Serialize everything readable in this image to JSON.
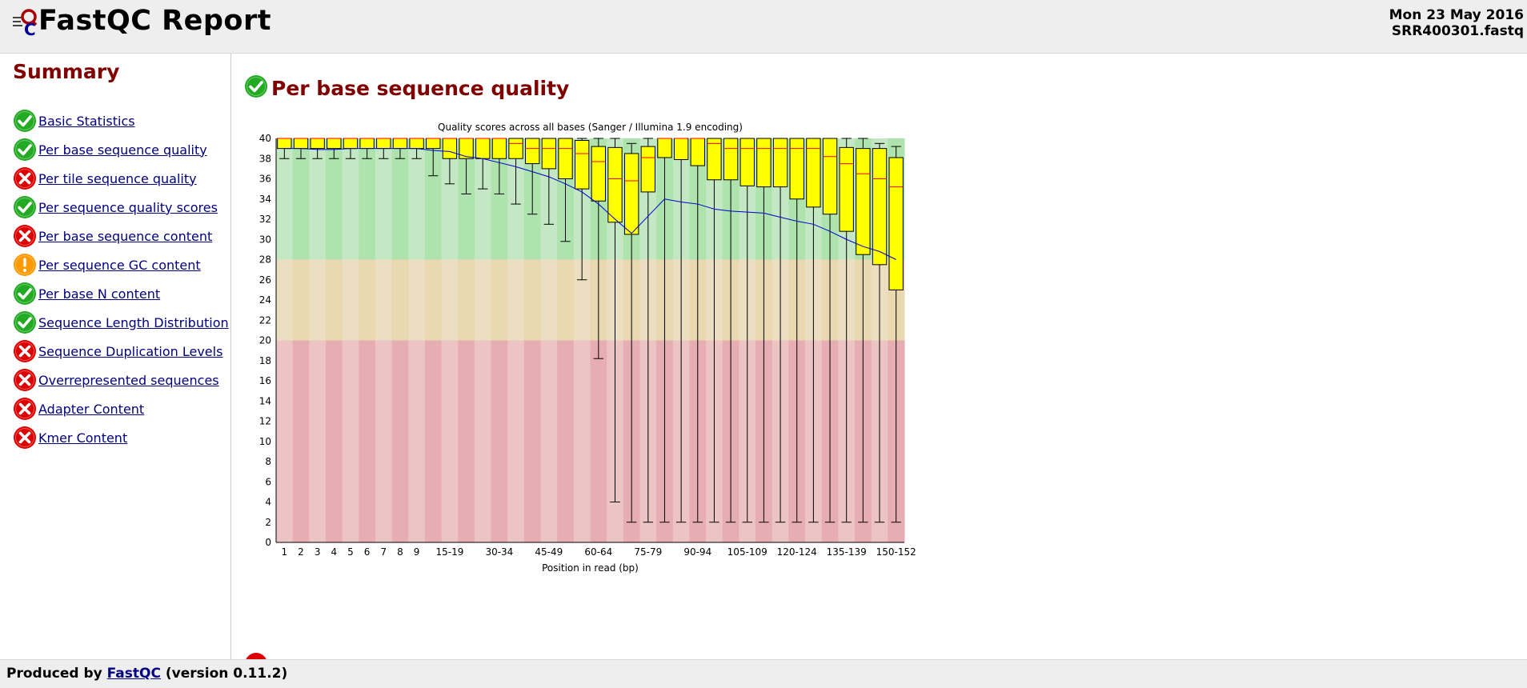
{
  "header": {
    "title": "FastQC Report",
    "date": "Mon 23 May 2016",
    "filename": "SRR400301.fastq"
  },
  "sidebar": {
    "title": "Summary",
    "items": [
      {
        "label": "Basic Statistics",
        "status": "pass"
      },
      {
        "label": "Per base sequence quality",
        "status": "pass"
      },
      {
        "label": "Per tile sequence quality",
        "status": "fail"
      },
      {
        "label": "Per sequence quality scores",
        "status": "pass"
      },
      {
        "label": "Per base sequence content",
        "status": "fail"
      },
      {
        "label": "Per sequence GC content",
        "status": "warn"
      },
      {
        "label": "Per base N content",
        "status": "pass"
      },
      {
        "label": "Sequence Length Distribution",
        "status": "pass"
      },
      {
        "label": "Sequence Duplication Levels",
        "status": "fail"
      },
      {
        "label": "Overrepresented sequences",
        "status": "fail"
      },
      {
        "label": "Adapter Content",
        "status": "fail"
      },
      {
        "label": "Kmer Content",
        "status": "fail"
      }
    ]
  },
  "main": {
    "module_title": "Per base sequence quality",
    "module_status": "pass"
  },
  "footer": {
    "prefix": "Produced by",
    "link": "FastQC",
    "suffix": "(version 0.11.2)"
  },
  "colors": {
    "pass": "#22aa22",
    "warn": "#ff9900",
    "fail": "#dd0000",
    "heading": "#800000",
    "box": "#ffff00",
    "median": "#ff0000",
    "mean_line": "#0000cc",
    "zone_good": "#c4e8c4",
    "zone_good_alt": "#aee3ae",
    "zone_mid": "#ecdfc1",
    "zone_mid_alt": "#e9d8b0",
    "zone_bad": "#ecc4c4",
    "zone_bad_alt": "#e6adb2"
  },
  "chart_data": {
    "type": "box",
    "title": "Quality scores across all bases (Sanger / Illumina 1.9 encoding)",
    "xlabel": "Position in read (bp)",
    "ylabel": "",
    "ylim": [
      0,
      40
    ],
    "y_ticks": [
      0,
      2,
      4,
      6,
      8,
      10,
      12,
      14,
      16,
      18,
      20,
      22,
      24,
      26,
      28,
      30,
      32,
      34,
      36,
      38,
      40
    ],
    "x_tick_labels": [
      "1",
      "2",
      "3",
      "4",
      "5",
      "6",
      "7",
      "8",
      "9",
      "15-19",
      "30-34",
      "45-49",
      "60-64",
      "75-79",
      "90-94",
      "105-109",
      "120-124",
      "135-139",
      "150-152"
    ],
    "zones": [
      {
        "name": "good",
        "from": 28,
        "to": 40
      },
      {
        "name": "acceptable",
        "from": 20,
        "to": 28
      },
      {
        "name": "poor",
        "from": 0,
        "to": 20
      }
    ],
    "categories": [
      "1",
      "2",
      "3",
      "4",
      "5",
      "6",
      "7",
      "8",
      "9",
      "10-14",
      "15-19",
      "20-24",
      "25-29",
      "30-34",
      "35-39",
      "40-44",
      "45-49",
      "50-54",
      "55-59",
      "60-64",
      "65-69",
      "70-74",
      "75-79",
      "80-84",
      "85-89",
      "90-94",
      "95-99",
      "100-104",
      "105-109",
      "110-114",
      "115-119",
      "120-124",
      "125-129",
      "130-134",
      "135-139",
      "140-144",
      "145-149",
      "150-152"
    ],
    "boxes": [
      {
        "q1": 39,
        "median": 40,
        "q3": 40,
        "low": 38,
        "high": 40,
        "mean": 39.0
      },
      {
        "q1": 39,
        "median": 40,
        "q3": 40,
        "low": 38,
        "high": 40,
        "mean": 39.0
      },
      {
        "q1": 39,
        "median": 40,
        "q3": 40,
        "low": 38,
        "high": 40,
        "mean": 38.9
      },
      {
        "q1": 39,
        "median": 40,
        "q3": 40,
        "low": 38,
        "high": 40,
        "mean": 38.9
      },
      {
        "q1": 39,
        "median": 40,
        "q3": 40,
        "low": 38,
        "high": 40,
        "mean": 39.0
      },
      {
        "q1": 39,
        "median": 40,
        "q3": 40,
        "low": 38,
        "high": 40,
        "mean": 39.0
      },
      {
        "q1": 39,
        "median": 40,
        "q3": 40,
        "low": 38,
        "high": 40,
        "mean": 39.0
      },
      {
        "q1": 39,
        "median": 40,
        "q3": 40,
        "low": 38,
        "high": 40,
        "mean": 39.0
      },
      {
        "q1": 39,
        "median": 40,
        "q3": 40,
        "low": 38,
        "high": 40,
        "mean": 39.0
      },
      {
        "q1": 39,
        "median": 40,
        "q3": 40,
        "low": 36.3,
        "high": 40,
        "mean": 38.8
      },
      {
        "q1": 38,
        "median": 40,
        "q3": 40,
        "low": 35.5,
        "high": 40,
        "mean": 38.7
      },
      {
        "q1": 38,
        "median": 40,
        "q3": 40,
        "low": 34.5,
        "high": 40,
        "mean": 38.2
      },
      {
        "q1": 38,
        "median": 40,
        "q3": 40,
        "low": 35.0,
        "high": 40,
        "mean": 38.0
      },
      {
        "q1": 38,
        "median": 40,
        "q3": 40,
        "low": 34.5,
        "high": 40,
        "mean": 37.6
      },
      {
        "q1": 38,
        "median": 39.5,
        "q3": 40,
        "low": 33.5,
        "high": 40,
        "mean": 37.2
      },
      {
        "q1": 37.5,
        "median": 39,
        "q3": 40,
        "low": 32.5,
        "high": 40,
        "mean": 36.7
      },
      {
        "q1": 37,
        "median": 39,
        "q3": 40,
        "low": 31.5,
        "high": 40,
        "mean": 36.2
      },
      {
        "q1": 36,
        "median": 39,
        "q3": 40,
        "low": 29.8,
        "high": 40,
        "mean": 35.5
      },
      {
        "q1": 35,
        "median": 38.5,
        "q3": 39.8,
        "low": 26.0,
        "high": 40,
        "mean": 34.7
      },
      {
        "q1": 33.8,
        "median": 37.7,
        "q3": 39.2,
        "low": 18.2,
        "high": 40,
        "mean": 33.5
      },
      {
        "q1": 31.7,
        "median": 36.0,
        "q3": 39.1,
        "low": 4.0,
        "high": 40,
        "mean": 32.0
      },
      {
        "q1": 30.5,
        "median": 35.8,
        "q3": 38.5,
        "low": 2,
        "high": 39.5,
        "mean": 30.6
      },
      {
        "q1": 34.7,
        "median": 38.1,
        "q3": 39.2,
        "low": 2,
        "high": 40,
        "mean": 32.3
      },
      {
        "q1": 38.1,
        "median": 40,
        "q3": 40,
        "low": 2,
        "high": 40,
        "mean": 34.0
      },
      {
        "q1": 37.9,
        "median": 40,
        "q3": 40,
        "low": 2,
        "high": 40,
        "mean": 33.7
      },
      {
        "q1": 37.3,
        "median": 40,
        "q3": 40,
        "low": 2,
        "high": 40,
        "mean": 33.5
      },
      {
        "q1": 35.9,
        "median": 39.5,
        "q3": 40,
        "low": 2,
        "high": 40,
        "mean": 33.0
      },
      {
        "q1": 35.9,
        "median": 39.0,
        "q3": 40,
        "low": 2,
        "high": 40,
        "mean": 32.8
      },
      {
        "q1": 35.3,
        "median": 39.0,
        "q3": 40,
        "low": 2,
        "high": 40,
        "mean": 32.7
      },
      {
        "q1": 35.2,
        "median": 39.0,
        "q3": 40,
        "low": 2,
        "high": 40,
        "mean": 32.6
      },
      {
        "q1": 35.2,
        "median": 39.0,
        "q3": 40,
        "low": 2,
        "high": 40,
        "mean": 32.2
      },
      {
        "q1": 34.0,
        "median": 39.0,
        "q3": 40,
        "low": 2,
        "high": 40,
        "mean": 31.8
      },
      {
        "q1": 33.2,
        "median": 39.0,
        "q3": 40,
        "low": 2,
        "high": 40,
        "mean": 31.5
      },
      {
        "q1": 32.5,
        "median": 38.2,
        "q3": 40,
        "low": 2,
        "high": 40,
        "mean": 30.8
      },
      {
        "q1": 30.8,
        "median": 37.5,
        "q3": 39.1,
        "low": 2,
        "high": 40,
        "mean": 30.0
      },
      {
        "q1": 28.5,
        "median": 36.5,
        "q3": 39.0,
        "low": 2,
        "high": 40,
        "mean": 29.3
      },
      {
        "q1": 27.5,
        "median": 36.0,
        "q3": 39.0,
        "low": 2,
        "high": 39.5,
        "mean": 28.8
      },
      {
        "q1": 25.0,
        "median": 35.2,
        "q3": 38.1,
        "low": 2,
        "high": 39.2,
        "mean": 28.0
      }
    ]
  }
}
